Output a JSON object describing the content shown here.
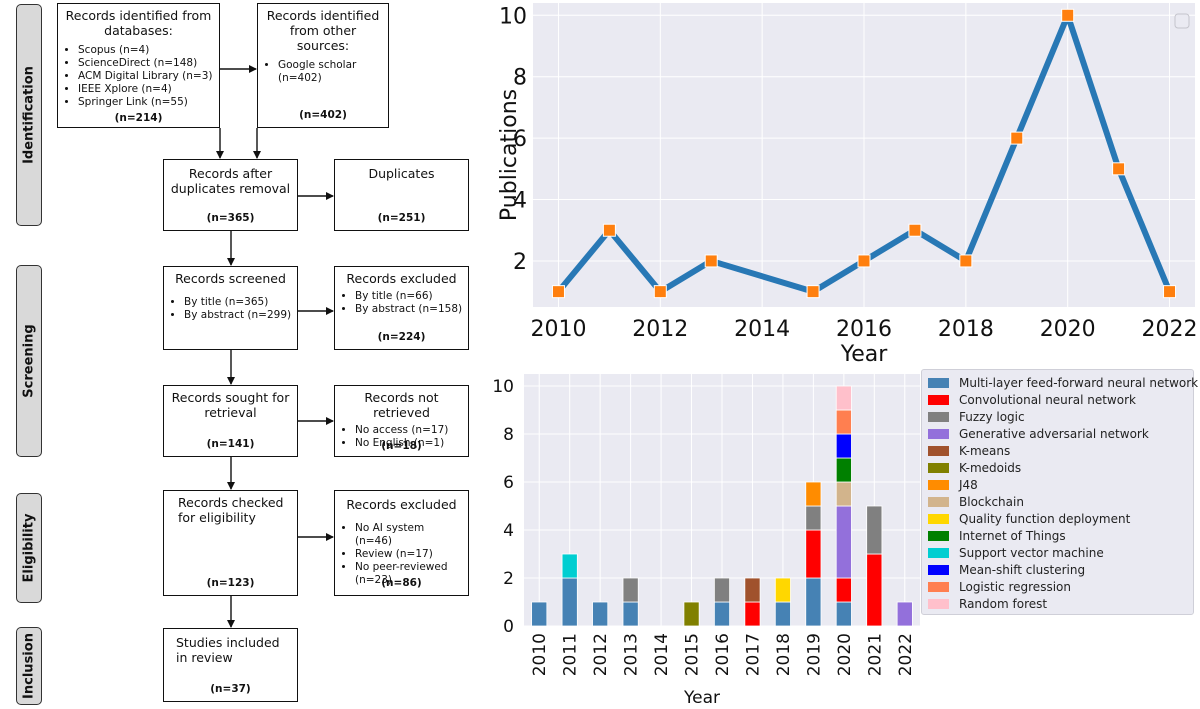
{
  "flow": {
    "phases": [
      "Identification",
      "Screening",
      "Eligibility",
      "Inclusion"
    ],
    "db_box": {
      "title": "Records identified from databases:",
      "items": [
        "Scopus (n=4)",
        "ScienceDirect (n=148)",
        "ACM Digital Library (n=3)",
        "IEEE Xplore (n=4)",
        "Springer Link (n=55)"
      ],
      "count": "(n=214)"
    },
    "other_box": {
      "title": "Records identified from other sources:",
      "items": [
        "Google scholar (n=402)"
      ],
      "count": "(n=402)"
    },
    "dedup_box": {
      "title": "Records after duplicates removal",
      "count": "(n=365)"
    },
    "duplicates_box": {
      "title": "Duplicates",
      "count": "(n=251)"
    },
    "screened_box": {
      "title": "Records screened",
      "items": [
        "By title (n=365)",
        "By abstract (n=299)"
      ]
    },
    "excluded1_box": {
      "title": "Records excluded",
      "items": [
        "By title (n=66)",
        "By abstract (n=158)"
      ],
      "count": "(n=224)"
    },
    "sought_box": {
      "title": "Records sought for retrieval",
      "count": "(n=141)"
    },
    "notretrieved_box": {
      "title": "Records not retrieved",
      "items": [
        "No access (n=17)",
        "No English (n=1)"
      ],
      "count": "(n=18)"
    },
    "checked_box": {
      "title": "Records checked for eligibility",
      "count": "(n=123)"
    },
    "excluded2_box": {
      "title": "Records excluded",
      "items": [
        "No AI system (n=46)",
        "Review (n=17)",
        "No peer-reviewed (n=23)"
      ],
      "count": "(n=86)"
    },
    "included_box": {
      "title": "Studies included in review",
      "count": "(n=37)"
    }
  },
  "chart_data": [
    {
      "type": "line",
      "x": [
        2010,
        2011,
        2012,
        2013,
        2015,
        2016,
        2017,
        2018,
        2019,
        2020,
        2021,
        2022
      ],
      "y": [
        1,
        3,
        1,
        2,
        1,
        2,
        3,
        2,
        6,
        10,
        5,
        1
      ],
      "xlabel": "Year",
      "ylabel": "Publications",
      "xticks": [
        "2010",
        "2012",
        "2014",
        "2016",
        "2018",
        "2020",
        "2022"
      ],
      "yticks": [
        "2",
        "4",
        "6",
        "8",
        "10"
      ],
      "xlim": [
        2009.5,
        2022.5
      ],
      "ylim": [
        0.5,
        10.4
      ],
      "line_color": "#2878b5",
      "marker_color": "#ff7f0e",
      "grid": true,
      "legend": "top-right, empty"
    },
    {
      "type": "bar",
      "stacked": true,
      "categories": [
        "2010",
        "2011",
        "2012",
        "2013",
        "2014",
        "2015",
        "2016",
        "2017",
        "2018",
        "2019",
        "2020",
        "2021",
        "2022"
      ],
      "series": [
        {
          "name": "Multi-layer feed-forward neural network",
          "color": "#4682b4",
          "values": [
            1,
            2,
            1,
            1,
            0,
            0,
            1,
            0,
            1,
            2,
            1,
            0,
            0
          ]
        },
        {
          "name": "Convolutional neural network",
          "color": "#ff0000",
          "values": [
            0,
            0,
            0,
            0,
            0,
            0,
            0,
            1,
            0,
            2,
            1,
            3,
            0
          ]
        },
        {
          "name": "Fuzzy logic",
          "color": "#808080",
          "values": [
            0,
            0,
            0,
            1,
            0,
            0,
            1,
            0,
            0,
            1,
            0,
            2,
            0
          ]
        },
        {
          "name": "Generative adversarial network",
          "color": "#9370db",
          "values": [
            0,
            0,
            0,
            0,
            0,
            0,
            0,
            0,
            0,
            0,
            3,
            0,
            1
          ]
        },
        {
          "name": "K-means",
          "color": "#a0522d",
          "values": [
            0,
            0,
            0,
            0,
            0,
            0,
            0,
            1,
            0,
            0,
            0,
            0,
            0
          ]
        },
        {
          "name": "K-medoids",
          "color": "#808000",
          "values": [
            0,
            0,
            0,
            0,
            0,
            1,
            0,
            0,
            0,
            0,
            0,
            0,
            0
          ]
        },
        {
          "name": "J48",
          "color": "#ff8c00",
          "values": [
            0,
            0,
            0,
            0,
            0,
            0,
            0,
            0,
            0,
            1,
            0,
            0,
            0
          ]
        },
        {
          "name": "Blockchain",
          "color": "#d2b48c",
          "values": [
            0,
            0,
            0,
            0,
            0,
            0,
            0,
            0,
            0,
            0,
            1,
            0,
            0
          ]
        },
        {
          "name": "Quality function deployment",
          "color": "#ffd700",
          "values": [
            0,
            0,
            0,
            0,
            0,
            0,
            0,
            0,
            1,
            0,
            0,
            0,
            0
          ]
        },
        {
          "name": "Internet of Things",
          "color": "#008000",
          "values": [
            0,
            0,
            0,
            0,
            0,
            0,
            0,
            0,
            0,
            0,
            1,
            0,
            0
          ]
        },
        {
          "name": "Support vector machine",
          "color": "#00ced1",
          "values": [
            0,
            1,
            0,
            0,
            0,
            0,
            0,
            0,
            0,
            0,
            0,
            0,
            0
          ]
        },
        {
          "name": "Mean-shift clustering",
          "color": "#0000ff",
          "values": [
            0,
            0,
            0,
            0,
            0,
            0,
            0,
            0,
            0,
            0,
            1,
            0,
            0
          ]
        },
        {
          "name": "Logistic regression",
          "color": "#ff7f50",
          "values": [
            0,
            0,
            0,
            0,
            0,
            0,
            0,
            0,
            0,
            0,
            1,
            0,
            0
          ]
        },
        {
          "name": "Random forest",
          "color": "#ffc0cb",
          "values": [
            0,
            0,
            0,
            0,
            0,
            0,
            0,
            0,
            0,
            0,
            1,
            0,
            0
          ]
        }
      ],
      "xlabel": "Year",
      "ylabel": "",
      "yticks": [
        "0",
        "2",
        "4",
        "6",
        "8",
        "10"
      ],
      "ylim": [
        0,
        10.5
      ],
      "grid": true,
      "legend": "right"
    }
  ]
}
